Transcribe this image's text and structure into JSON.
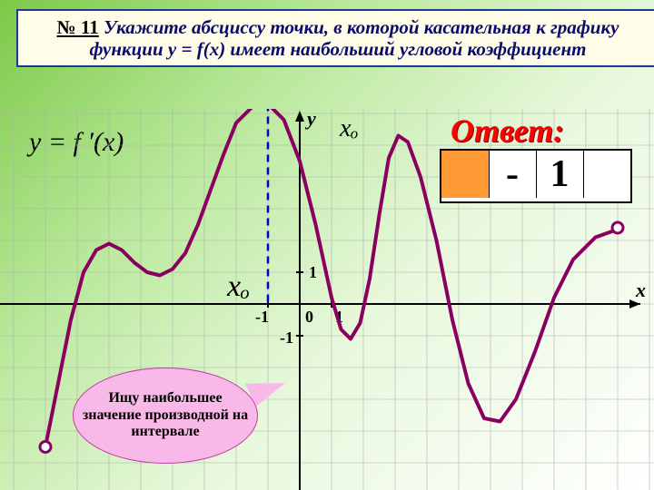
{
  "title": {
    "num": "№ 11",
    "text": "Укажите абсциссу точки, в которой касательная к графику функции y = f(x) имеет наибольший угловой коэффициент"
  },
  "formula": "y = f ′(x)",
  "answer_label": "Ответ:",
  "answer_cells": [
    "",
    "-",
    "1",
    ""
  ],
  "callout": "Ищу наибольшее значение производной на интервале",
  "xo_top": "xₒ",
  "xo_mid": "xₒ",
  "axis": {
    "x_label": "x",
    "y_label": "y",
    "ticks": [
      "-1",
      "0",
      "1",
      "-1",
      "1"
    ]
  },
  "chart": {
    "type": "line",
    "grid_color": "#b0b0b0",
    "curve_color": "#8a0060",
    "curve_width": 4,
    "dash_color": "#0000cc",
    "endpoint_open": true,
    "x_origin": 330,
    "y_origin": 335,
    "unit": 35,
    "xlim": [
      -9.5,
      11
    ],
    "ylim": [
      -6,
      6.5
    ],
    "curve_pts": [
      [
        -8,
        -4.5
      ],
      [
        -7.6,
        -2.5
      ],
      [
        -7.2,
        -0.5
      ],
      [
        -6.8,
        1.0
      ],
      [
        -6.4,
        1.7
      ],
      [
        -6,
        1.9
      ],
      [
        -5.6,
        1.7
      ],
      [
        -5.2,
        1.3
      ],
      [
        -4.8,
        1.0
      ],
      [
        -4.4,
        0.9
      ],
      [
        -4,
        1.1
      ],
      [
        -3.6,
        1.6
      ],
      [
        -3.2,
        2.5
      ],
      [
        -2.8,
        3.6
      ],
      [
        -2.4,
        4.7
      ],
      [
        -2,
        5.7
      ],
      [
        -1.5,
        6.2
      ],
      [
        -1,
        6.3
      ],
      [
        -0.5,
        5.8
      ],
      [
        0,
        4.5
      ],
      [
        0.5,
        2.5
      ],
      [
        1,
        0.2
      ],
      [
        1.3,
        -0.8
      ],
      [
        1.6,
        -1.1
      ],
      [
        1.9,
        -0.6
      ],
      [
        2.2,
        0.8
      ],
      [
        2.5,
        2.8
      ],
      [
        2.8,
        4.6
      ],
      [
        3.1,
        5.3
      ],
      [
        3.4,
        5.1
      ],
      [
        3.8,
        4.0
      ],
      [
        4.3,
        2.0
      ],
      [
        4.8,
        -0.5
      ],
      [
        5.3,
        -2.5
      ],
      [
        5.8,
        -3.6
      ],
      [
        6.3,
        -3.7
      ],
      [
        6.8,
        -3.0
      ],
      [
        7.4,
        -1.5
      ],
      [
        8.0,
        0.2
      ],
      [
        8.6,
        1.4
      ],
      [
        9.3,
        2.1
      ],
      [
        10,
        2.35
      ]
    ],
    "endpoints": [
      [
        -8,
        -4.5
      ],
      [
        10,
        2.4
      ]
    ]
  },
  "colors": {
    "title_border": "#1a3a8a",
    "title_bg": "#fffde8",
    "answer_hl": "#ff9933",
    "callout_bg": "#f8b8e8",
    "callout_border": "#c040a0"
  }
}
